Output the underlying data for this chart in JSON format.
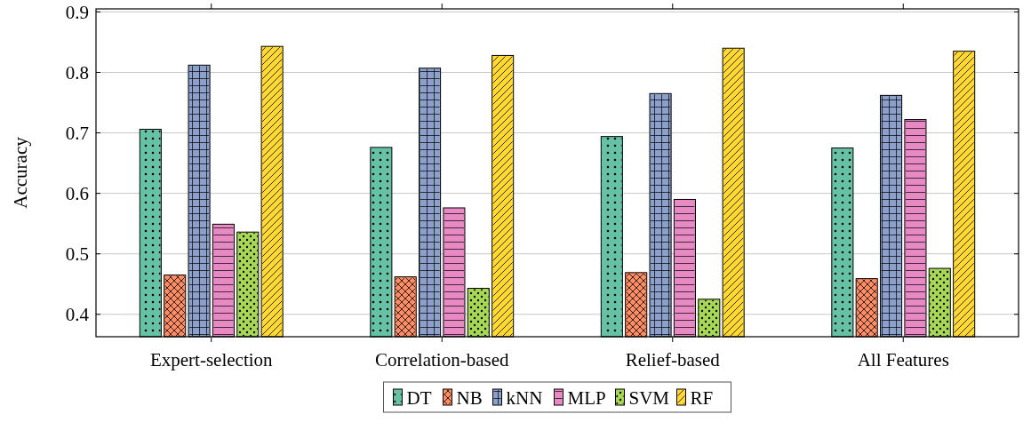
{
  "chart_data": {
    "type": "bar",
    "ylabel": "Accuracy",
    "categories": [
      "Expert-selection",
      "Correlation-based",
      "Relief-based",
      "All Features"
    ],
    "series": [
      {
        "name": "DT",
        "color": "#66c2a5",
        "values": [
          0.706,
          0.676,
          0.694,
          0.675
        ]
      },
      {
        "name": "NB",
        "color": "#fc8d62",
        "values": [
          0.465,
          0.462,
          0.469,
          0.459
        ]
      },
      {
        "name": "kNN",
        "color": "#8da0cb",
        "values": [
          0.812,
          0.807,
          0.765,
          0.762
        ]
      },
      {
        "name": "MLP",
        "color": "#e78ac3",
        "values": [
          0.549,
          0.576,
          0.59,
          0.722
        ]
      },
      {
        "name": "SVM",
        "color": "#a6d854",
        "values": [
          0.536,
          0.443,
          0.425,
          0.476
        ]
      },
      {
        "name": "RF",
        "color": "#ffd92f",
        "values": [
          0.843,
          0.828,
          0.84,
          0.835
        ]
      }
    ],
    "ylim": [
      0.363,
      0.905
    ],
    "yticks": [
      {
        "value": 0.4,
        "label": "0.4"
      },
      {
        "value": 0.5,
        "label": "0.5"
      },
      {
        "value": 0.6,
        "label": "0.6"
      },
      {
        "value": 0.7,
        "label": "0.7"
      },
      {
        "value": 0.8,
        "label": "0.8"
      },
      {
        "value": 0.9,
        "label": "0.9"
      }
    ],
    "grid": "y",
    "legend": "bottom"
  }
}
